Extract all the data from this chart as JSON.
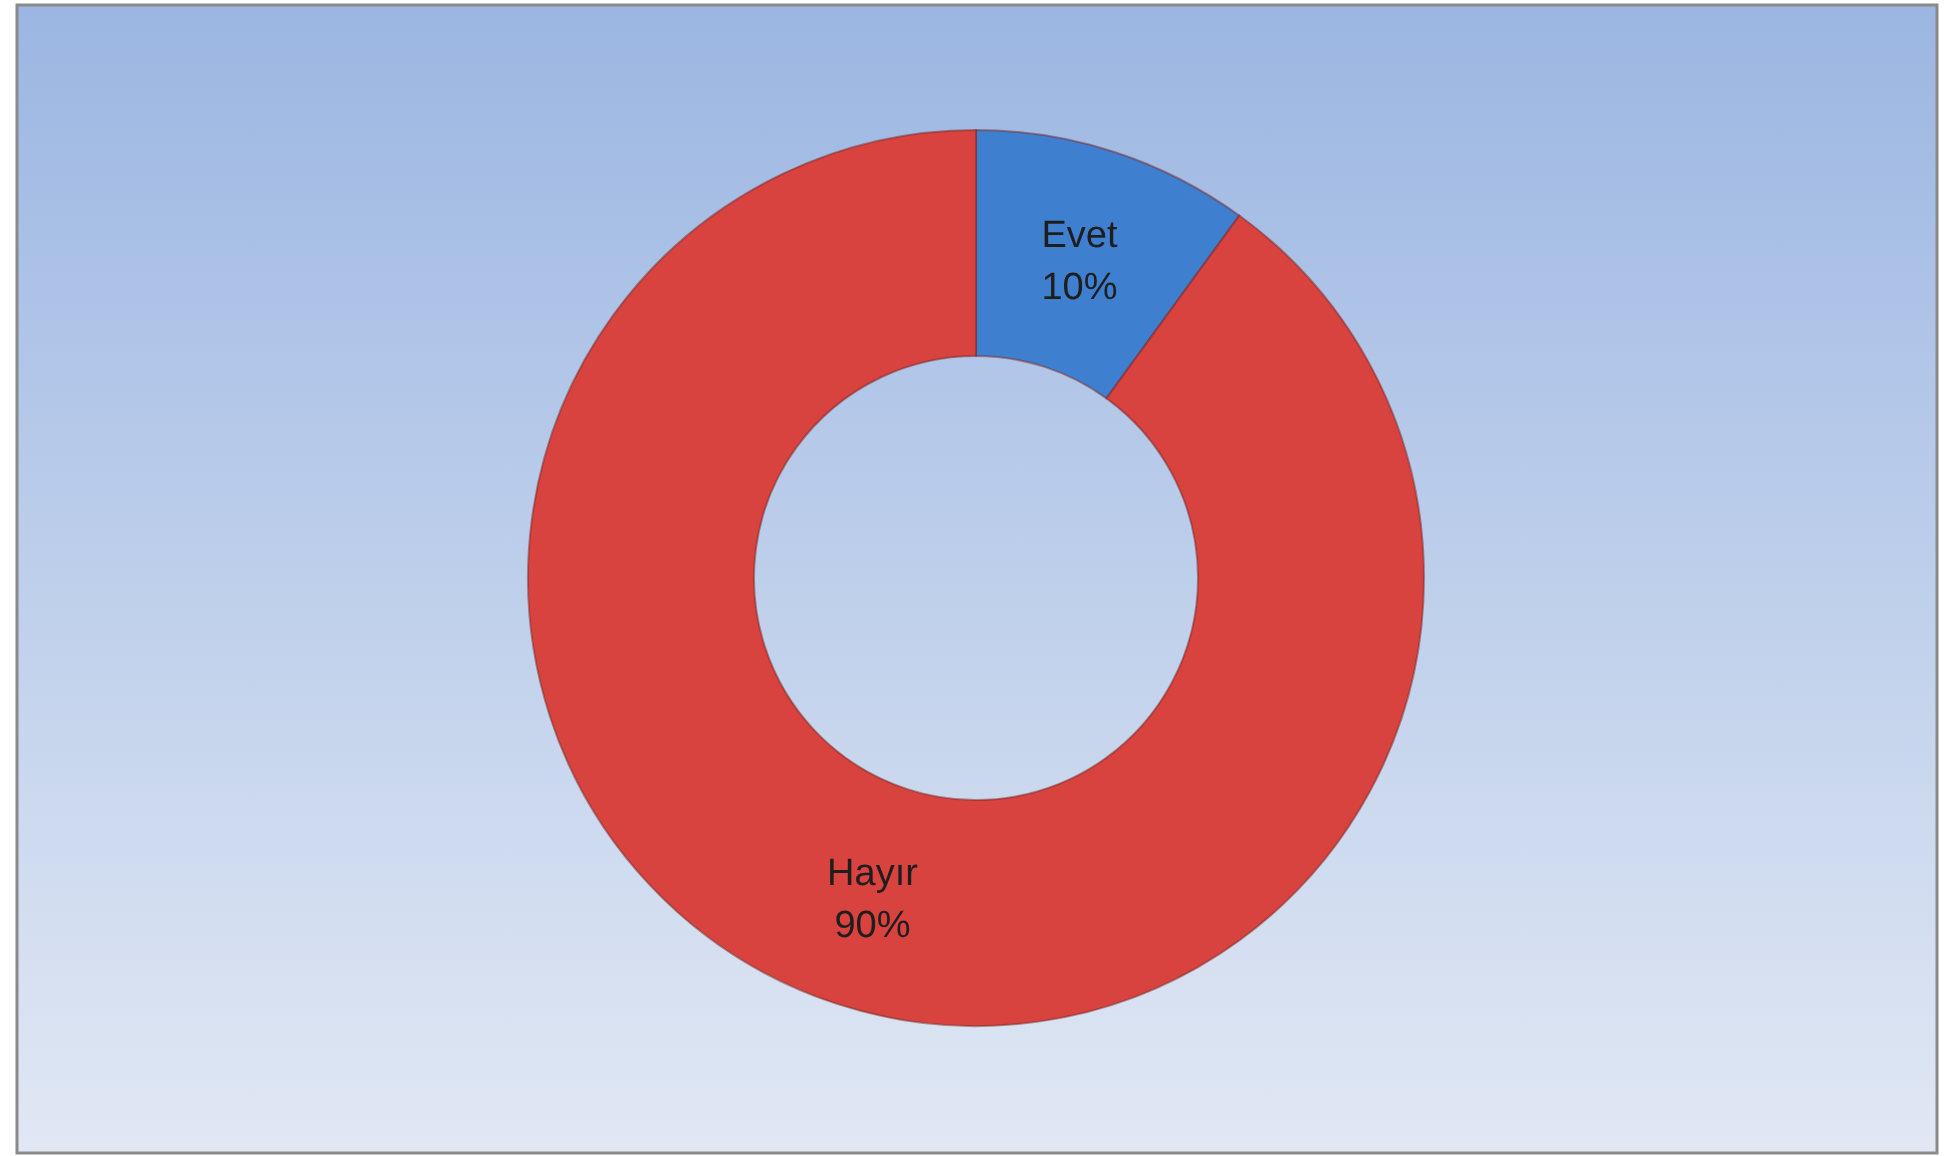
{
  "chart_data": {
    "type": "donut",
    "categories": [
      "Evet",
      "Hayır"
    ],
    "values": [
      10,
      90
    ],
    "value_labels": [
      "10%",
      "90%"
    ],
    "colors": [
      "#3f7fd0",
      "#d9433f"
    ]
  }
}
